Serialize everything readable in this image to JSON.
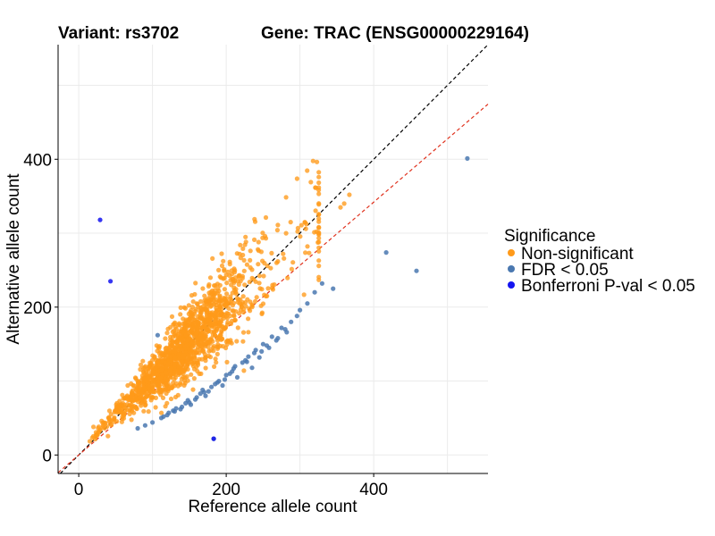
{
  "chart_data": {
    "type": "scatter",
    "title_left": "Variant: rs3702",
    "title_right": "Gene: TRAC (ENSG00000229164)",
    "xlabel": "Reference allele count",
    "ylabel": "Alternative allele count",
    "xlim": [
      -28,
      555
    ],
    "ylim": [
      -25,
      555
    ],
    "x_ticks": [
      0,
      200,
      400
    ],
    "y_ticks": [
      0,
      200,
      400
    ],
    "grid": true,
    "legend": {
      "title": "Significance",
      "position": "right",
      "entries": [
        {
          "label": "Non-significant",
          "color": "#FF9A1A"
        },
        {
          "label": "FDR < 0.05",
          "color": "#4A78B0"
        },
        {
          "label": "Bonferroni P-val < 0.05",
          "color": "#1414F0"
        }
      ]
    },
    "reference_lines": [
      {
        "name": "identity",
        "slope": 1.0,
        "intercept": 0,
        "color": "#000000",
        "style": "dashed"
      },
      {
        "name": "fit",
        "slope": 0.855,
        "intercept": 0,
        "color": "#E0321E",
        "style": "dashed"
      }
    ],
    "series": [
      {
        "name": "Bonferroni P-val < 0.05",
        "color": "#1414F0",
        "x": [
          29,
          43,
          183
        ],
        "y": [
          318,
          235,
          22
        ]
      },
      {
        "name": "FDR < 0.05",
        "color": "#4A78B0",
        "x": [
          527,
          417,
          458,
          107,
          183,
          345,
          310,
          300,
          288,
          275,
          262,
          250,
          240,
          230,
          222,
          210,
          200,
          190,
          180,
          170,
          160,
          150,
          140,
          130,
          120,
          112,
          100,
          90,
          80,
          235,
          215,
          195,
          172,
          152,
          245,
          268,
          205,
          185,
          165,
          145,
          128,
          115,
          212,
          238,
          258,
          280,
          198,
          176,
          158,
          138,
          255,
          226,
          208,
          188,
          168,
          148,
          132,
          122,
          282,
          296,
          320,
          330,
          270,
          248,
          228
        ],
        "y": [
          401,
          274,
          249,
          162,
          22,
          225,
          205,
          196,
          180,
          172,
          160,
          150,
          142,
          133,
          125,
          117,
          108,
          100,
          92,
          85,
          78,
          71,
          65,
          59,
          54,
          50,
          44,
          40,
          36,
          118,
          105,
          94,
          80,
          68,
          132,
          155,
          110,
          96,
          83,
          70,
          60,
          52,
          120,
          138,
          145,
          170,
          102,
          86,
          75,
          62,
          148,
          128,
          113,
          98,
          88,
          74,
          63,
          57,
          166,
          188,
          220,
          232,
          158,
          140,
          126
        ]
      }
    ],
    "nonsignificant": {
      "name": "Non-significant",
      "color": "#FF9A1A",
      "count": 1500,
      "x_range": [
        15,
        370
      ],
      "center_x": 140,
      "spread_x": 45,
      "slope": 0.97,
      "relative_noise": 0.16,
      "extremes": [
        [
          367,
          352
        ],
        [
          360,
          340
        ],
        [
          355,
          335
        ],
        [
          270,
          311
        ],
        [
          243,
          278
        ],
        [
          20,
          38
        ],
        [
          25,
          27
        ],
        [
          31,
          46
        ]
      ]
    }
  }
}
